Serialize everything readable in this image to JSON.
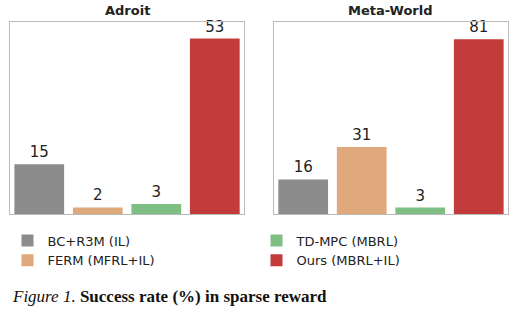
{
  "chart_data": [
    {
      "type": "bar",
      "title": "Adroit",
      "categories": [
        "BC+R3M (IL)",
        "FERM (MFRL+IL)",
        "TD-MPC (MBRL)",
        "Ours (MBRL+IL)"
      ],
      "values": [
        15,
        2,
        3,
        53
      ],
      "colors": [
        "#8c8c8c",
        "#e0a97c",
        "#7fbf84",
        "#c43b3b"
      ],
      "ylim": [
        0,
        58
      ],
      "yticks": [],
      "grid": false,
      "data_labels": true,
      "tick_labels": false,
      "legend": "bottom"
    },
    {
      "type": "bar",
      "title": "Meta-World",
      "categories": [
        "BC+R3M (IL)",
        "FERM (MFRL+IL)",
        "TD-MPC (MBRL)",
        "Ours (MBRL+IL)"
      ],
      "values": [
        16,
        31,
        3,
        81
      ],
      "colors": [
        "#8c8c8c",
        "#e0a97c",
        "#7fbf84",
        "#c43b3b"
      ],
      "ylim": [
        0,
        89
      ],
      "yticks": [],
      "grid": false,
      "data_labels": true,
      "tick_labels": false,
      "legend": "bottom"
    }
  ],
  "caption": {
    "label": "Figure 1.",
    "text": "Success rate (%) in sparse reward"
  }
}
